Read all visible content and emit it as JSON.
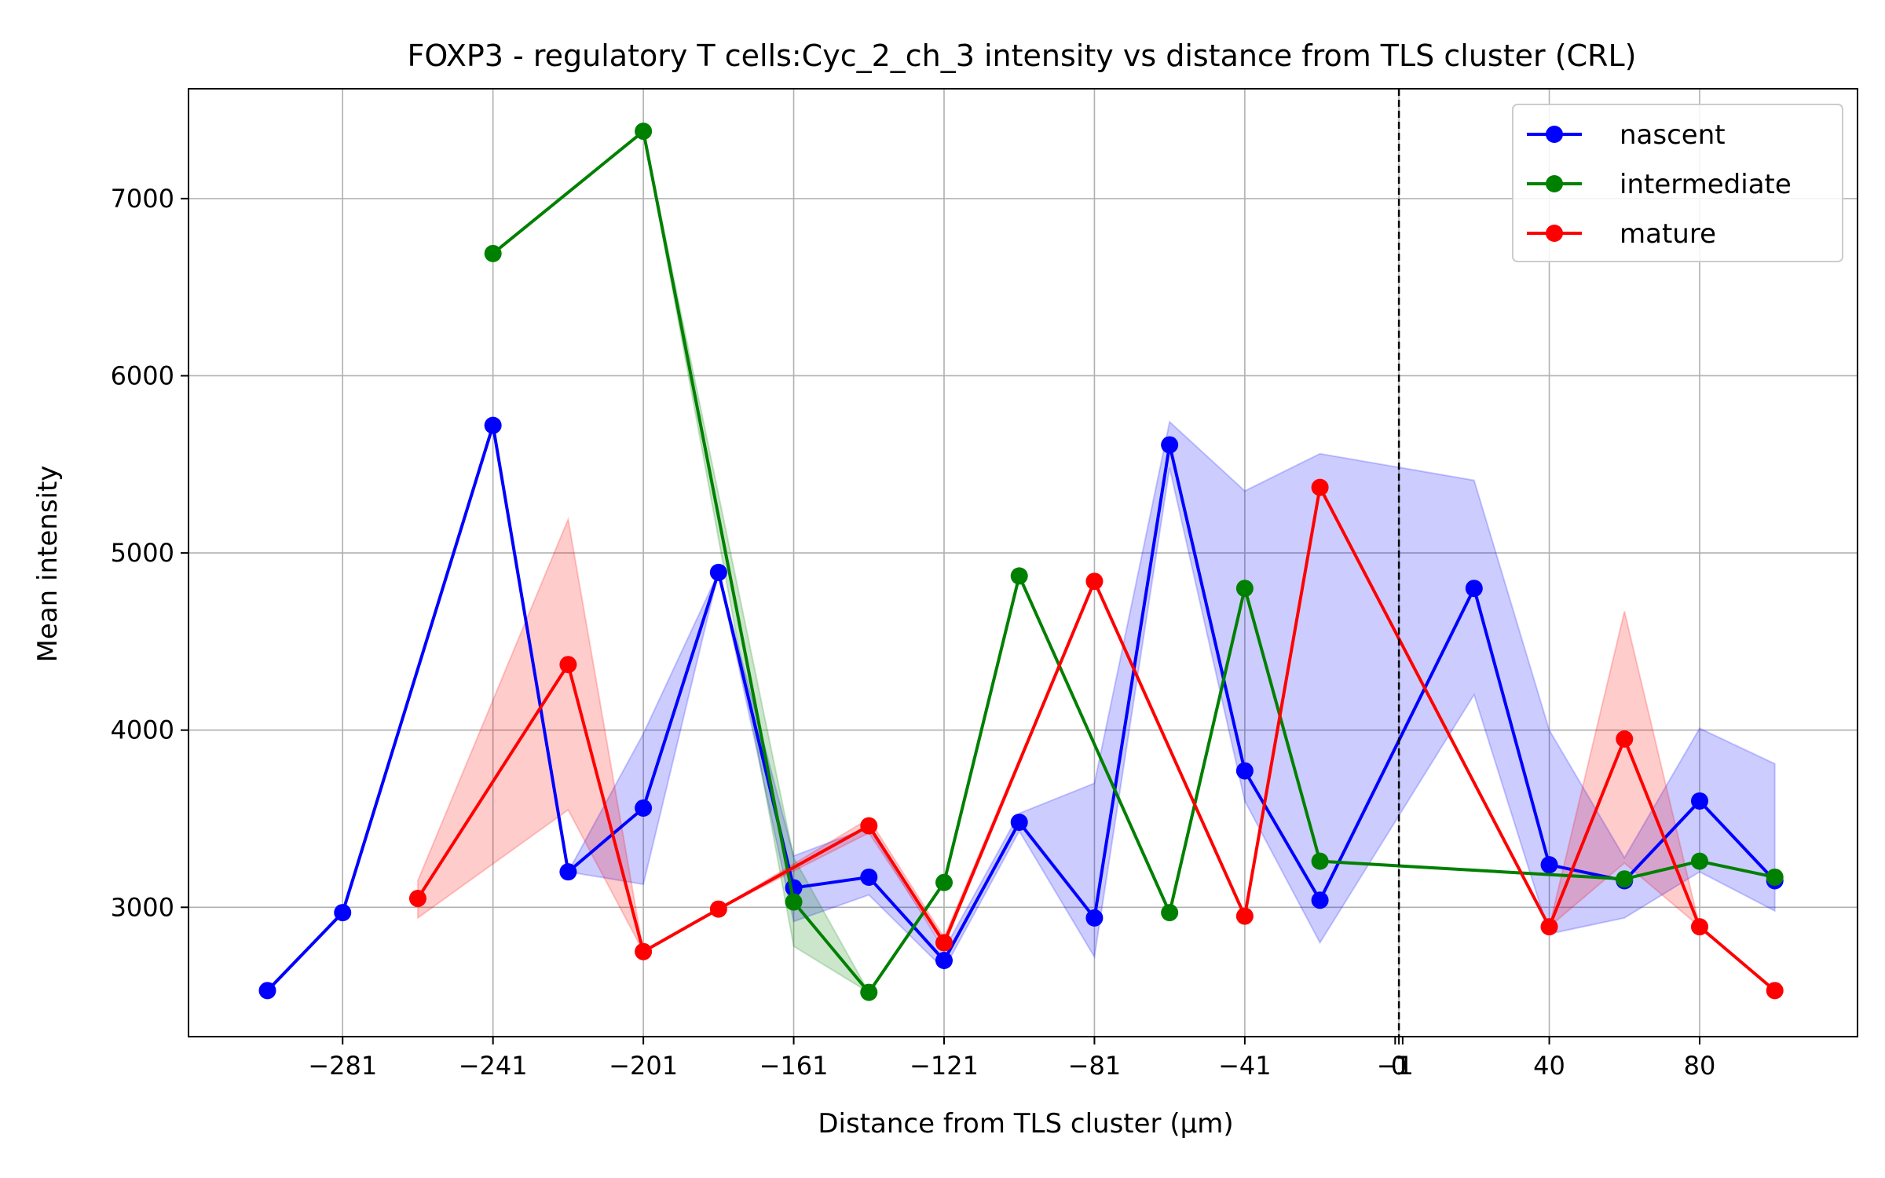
{
  "chart_data": {
    "type": "line",
    "title": "FOXP3 - regulatory T cells:Cyc_2_ch_3 intensity vs distance from TLS cluster (CRL)",
    "xlabel": "Distance from TLS cluster (μm)",
    "ylabel": "Mean intensity",
    "xlim": [
      -322,
      122
    ],
    "ylim": [
      2270,
      7620
    ],
    "x_ticks": [
      {
        "value": -281,
        "label": "−281"
      },
      {
        "value": -241,
        "label": "−241"
      },
      {
        "value": -201,
        "label": "−201"
      },
      {
        "value": -161,
        "label": "−161"
      },
      {
        "value": -121,
        "label": "−121"
      },
      {
        "value": -81,
        "label": "−81"
      },
      {
        "value": -41,
        "label": "−41"
      },
      {
        "value": -1,
        "label": "−1"
      },
      {
        "value": 0,
        "label": "0"
      },
      {
        "value": 1,
        "label": "1"
      },
      {
        "value": 40,
        "label": "40"
      },
      {
        "value": 80,
        "label": "80"
      }
    ],
    "x_grid": [
      -281,
      -241,
      -201,
      -161,
      -121,
      -81,
      -41,
      0,
      40,
      80
    ],
    "y_ticks": [
      {
        "value": 3000,
        "label": "3000"
      },
      {
        "value": 4000,
        "label": "4000"
      },
      {
        "value": 5000,
        "label": "5000"
      },
      {
        "value": 6000,
        "label": "6000"
      },
      {
        "value": 7000,
        "label": "7000"
      }
    ],
    "grid": true,
    "vline": {
      "x": 0,
      "style": "dashed",
      "color": "#000000"
    },
    "legend_position": "top-right",
    "series": [
      {
        "name": "nascent",
        "color": "#0000ff",
        "x": [
          -301,
          -281,
          -241,
          -221,
          -201,
          -181,
          -161,
          -141,
          -121,
          -101,
          -81,
          -61,
          -41,
          -21,
          20,
          40,
          60,
          80,
          100
        ],
        "y": [
          2530,
          2970,
          5720,
          3200,
          3560,
          4890,
          3110,
          3170,
          2700,
          3480,
          2940,
          5610,
          3770,
          3040,
          4800,
          3240,
          3150,
          3600,
          3150
        ],
        "band_lower": [
          2530,
          2970,
          5720,
          3200,
          3130,
          4890,
          2920,
          3070,
          2650,
          3430,
          2720,
          5480,
          3600,
          2800,
          4200,
          2850,
          2940,
          3200,
          2980
        ],
        "band_upper": [
          2530,
          2970,
          5720,
          3200,
          3980,
          4890,
          3290,
          3450,
          2760,
          3530,
          3700,
          5740,
          5350,
          5560,
          5410,
          4000,
          3280,
          4010,
          3810
        ]
      },
      {
        "name": "intermediate",
        "color": "#008000",
        "x": [
          -241,
          -201,
          -161,
          -141,
          -121,
          -101,
          -61,
          -41,
          -21,
          60,
          80,
          100
        ],
        "y": [
          6690,
          7380,
          3030,
          2520,
          3140,
          4870,
          2970,
          4800,
          3260,
          3160,
          3260,
          3170
        ],
        "band_lower": [
          6690,
          7380,
          2780,
          2520,
          3140,
          4870,
          2970,
          4800,
          3260,
          3160,
          3260,
          3170
        ],
        "band_upper": [
          6690,
          7380,
          3280,
          2520,
          3140,
          4870,
          2970,
          4800,
          3260,
          3160,
          3260,
          3170
        ]
      },
      {
        "name": "mature",
        "color": "#ff0000",
        "x": [
          -261,
          -221,
          -201,
          -181,
          -141,
          -121,
          -81,
          -41,
          -21,
          40,
          60,
          80,
          100
        ],
        "y": [
          3050,
          4370,
          2750,
          2990,
          3460,
          2800,
          4840,
          2950,
          5370,
          2890,
          3950,
          2890,
          2530
        ],
        "band_lower": [
          2940,
          3550,
          2750,
          2990,
          3420,
          2780,
          4840,
          2950,
          5370,
          2890,
          3250,
          2890,
          2530
        ],
        "band_upper": [
          3150,
          5190,
          2750,
          2990,
          3500,
          2830,
          4840,
          2950,
          5370,
          2890,
          4670,
          2890,
          2530
        ]
      }
    ]
  }
}
